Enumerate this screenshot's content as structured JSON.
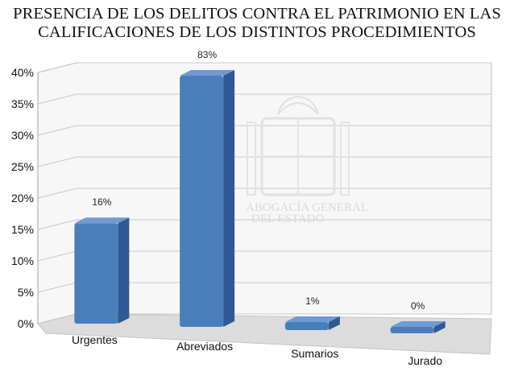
{
  "chart_data": {
    "type": "bar",
    "title_lines": [
      "PRESENCIA DE LOS DELITOS CONTRA EL PATRIMONIO EN LAS",
      "CALIFICACIONES DE LOS DISTINTOS PROCEDIMIENTOS"
    ],
    "categories": [
      "Urgentes",
      "Abreviados",
      "Sumarios",
      "Jurado"
    ],
    "values": [
      16,
      83,
      1,
      0
    ],
    "data_labels": [
      "16%",
      "83%",
      "1%",
      "0%"
    ],
    "y_ticks": [
      0,
      5,
      10,
      15,
      20,
      25,
      30,
      35,
      40
    ],
    "y_tick_labels": [
      "0%",
      "5%",
      "10%",
      "15%",
      "20%",
      "25%",
      "30%",
      "35%",
      "40%"
    ],
    "ylim": [
      0,
      40
    ],
    "xlabel": "",
    "ylabel": "",
    "grid": true,
    "three_d": true,
    "legend": "none",
    "colors": {
      "bar": "#4a7ebb",
      "bar_dark": "#2e5a94",
      "bar_top": "#6f9ad4",
      "grid": "#c8c8c8",
      "wall": "#f7f7f7",
      "floor": "#dcdcdc"
    },
    "watermark": {
      "lines": [
        "ABOGACÍA GENERAL",
        "DEL ESTADO"
      ]
    }
  }
}
